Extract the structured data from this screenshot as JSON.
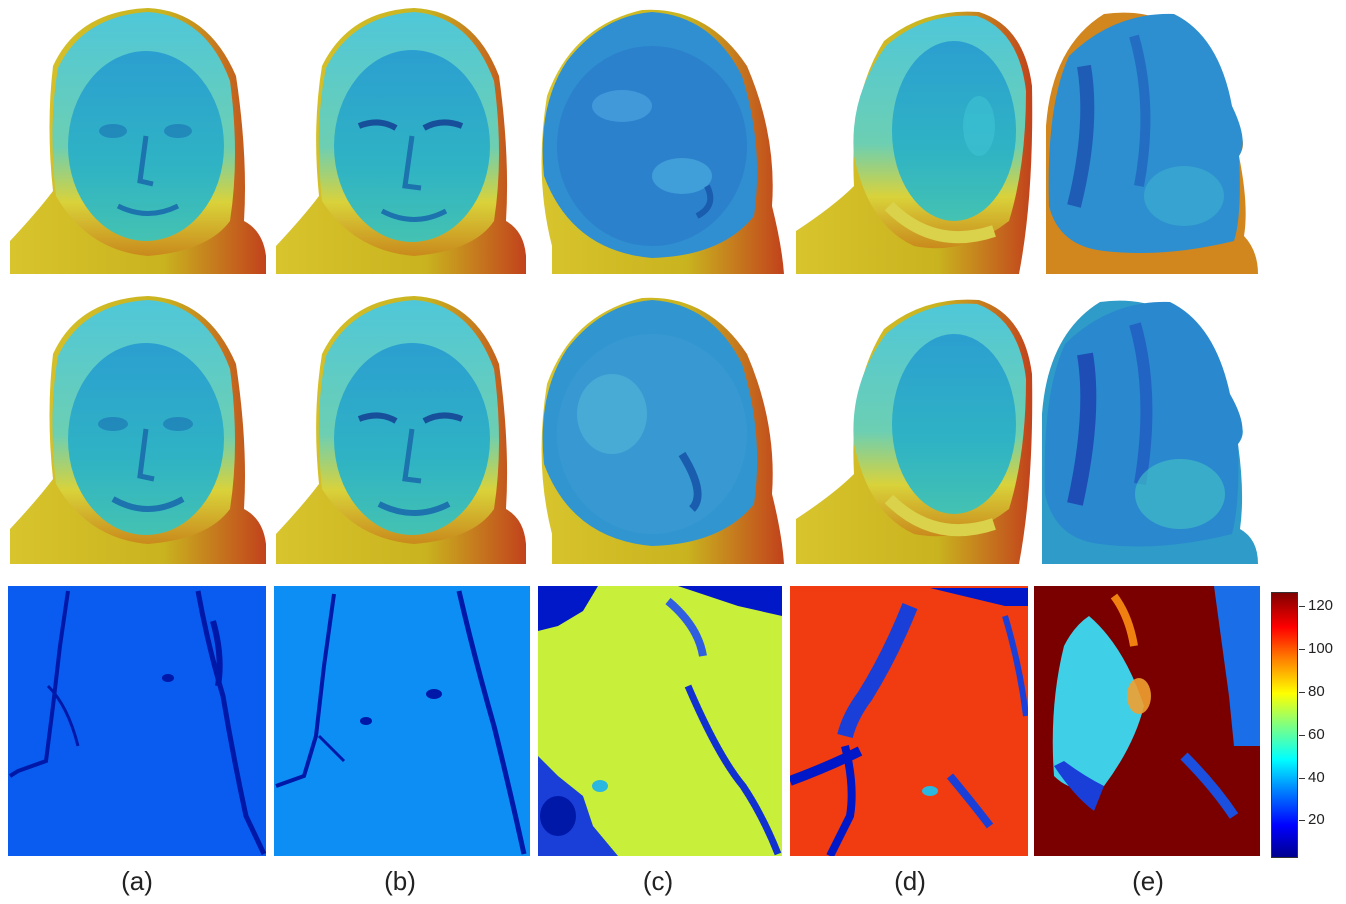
{
  "figure": {
    "captions": [
      "(a)",
      "(b)",
      "(c)",
      "(d)",
      "(e)"
    ],
    "colorbar_ticks": [
      "20",
      "40",
      "60",
      "80",
      "100",
      "120"
    ]
  },
  "colors": {
    "surface_blue": "#2aa9c8",
    "surface_yellow": "#d7d23a",
    "surface_red": "#c8471f",
    "map_a": "#0a5cf0",
    "map_b": "#0d8ef5",
    "map_c": "#c8f03a",
    "map_d": "#f03c10",
    "map_e": "#7a0000",
    "detail_blue": "#0018a8"
  }
}
